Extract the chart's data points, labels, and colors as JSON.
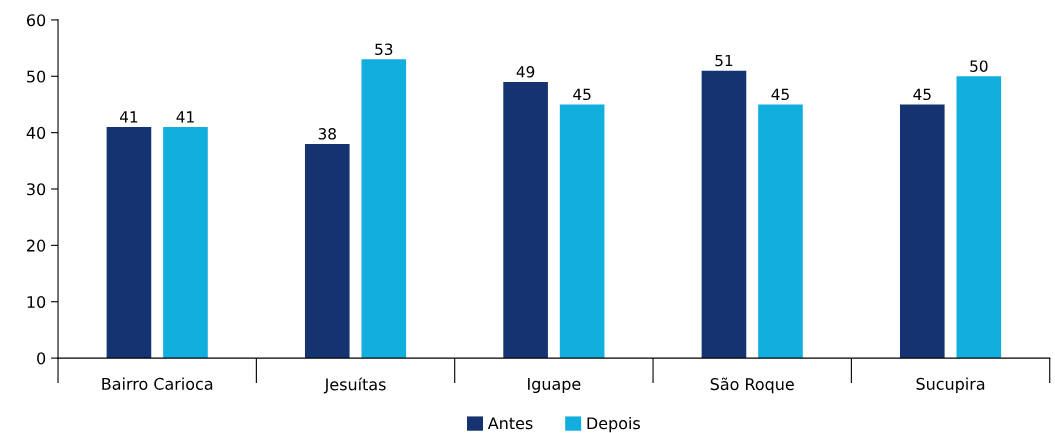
{
  "chart_data": {
    "type": "bar",
    "categories": [
      "Bairro Carioca",
      "Jesuítas",
      "Iguape",
      "São Roque",
      "Sucupira"
    ],
    "series": [
      {
        "name": "Antes",
        "color": "#153370",
        "values": [
          41,
          38,
          49,
          51,
          45
        ]
      },
      {
        "name": "Depois",
        "color": "#12aede",
        "values": [
          41,
          53,
          45,
          45,
          50
        ]
      }
    ],
    "ylim": [
      0,
      60
    ],
    "yticks": [
      0,
      10,
      20,
      30,
      40,
      50,
      60
    ],
    "data_labels": true,
    "grid": false,
    "legend": "bottom"
  }
}
